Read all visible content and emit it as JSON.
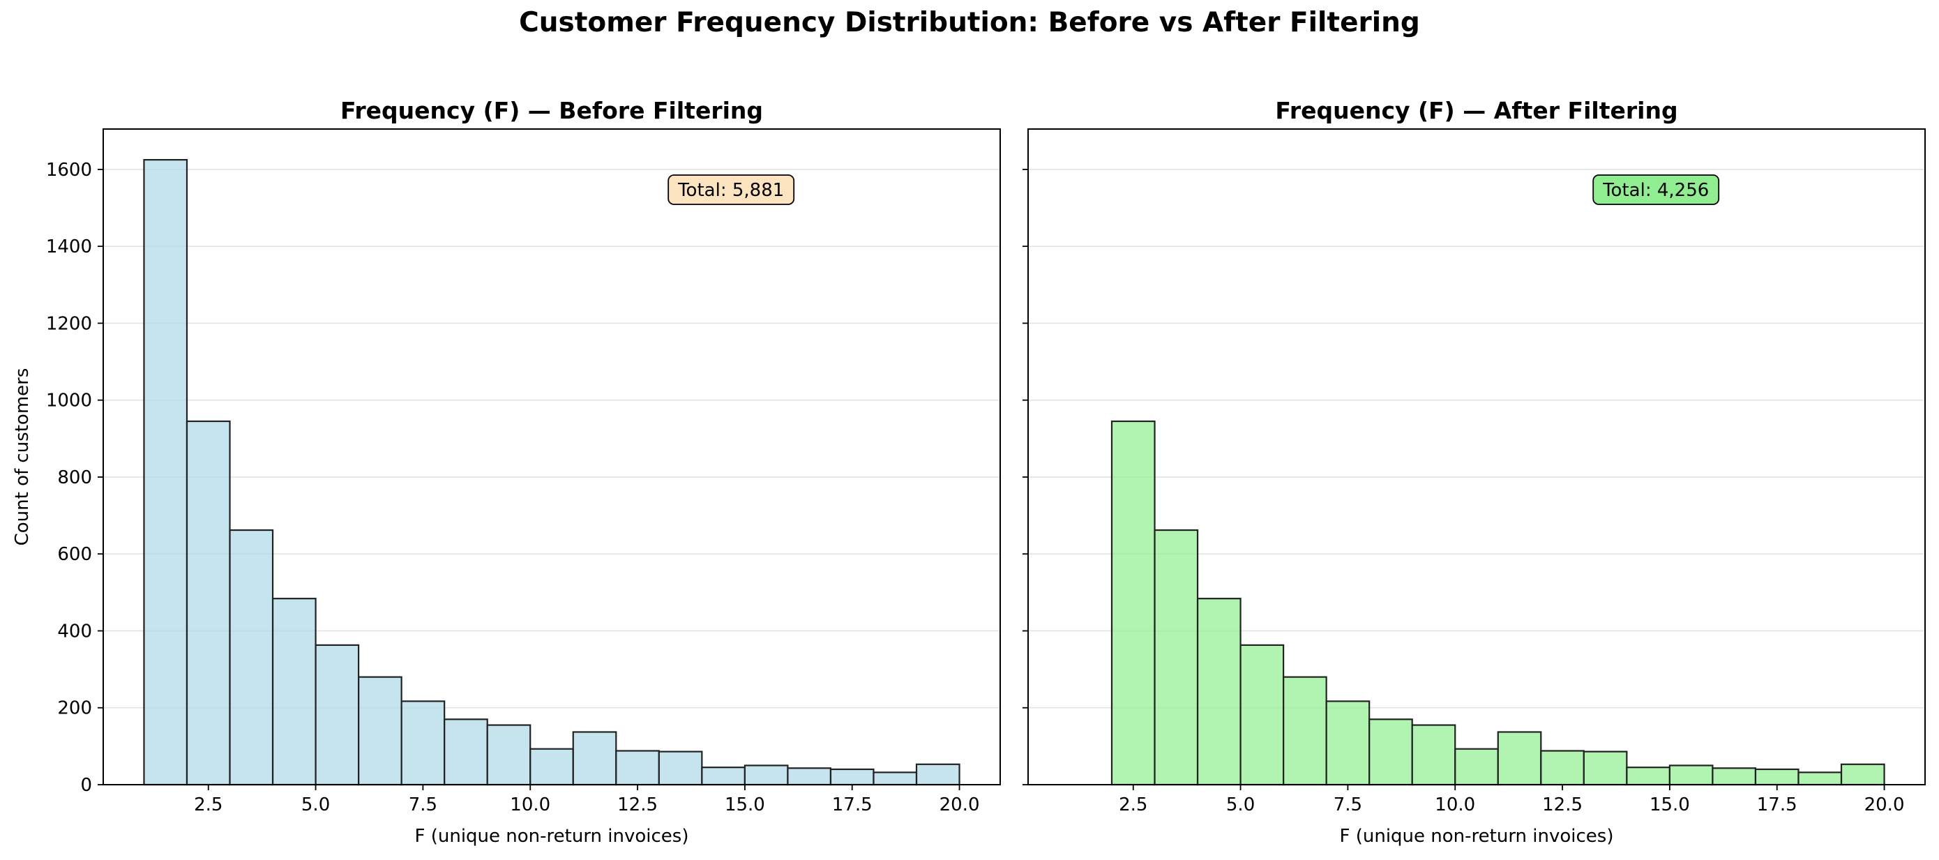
{
  "suptitle": "Customer Frequency Distribution: Before vs After Filtering",
  "chart_data": [
    {
      "type": "bar",
      "title": "Frequency (F) — Before Filtering",
      "xlabel": "F (unique non-return invoices)",
      "ylabel": "Count of customers",
      "xlim": [
        0.05,
        20.95
      ],
      "ylim": [
        0,
        1705
      ],
      "xticks": [
        2.5,
        5.0,
        7.5,
        10.0,
        12.5,
        15.0,
        17.5,
        20.0
      ],
      "xtick_labels": [
        "2.5",
        "5.0",
        "7.5",
        "10.0",
        "12.5",
        "15.0",
        "17.5",
        "20.0"
      ],
      "yticks": [
        0,
        200,
        400,
        600,
        800,
        1000,
        1200,
        1400,
        1600
      ],
      "ytick_labels": [
        "0",
        "200",
        "400",
        "600",
        "800",
        "1000",
        "1200",
        "1400",
        "1600"
      ],
      "bin_edges": [
        1,
        2,
        3,
        4,
        5,
        6,
        7,
        8,
        9,
        10,
        11,
        12,
        13,
        14,
        15,
        16,
        17,
        18,
        19,
        20
      ],
      "values": [
        1625,
        945,
        662,
        484,
        363,
        280,
        217,
        170,
        155,
        93,
        137,
        88,
        86,
        45,
        50,
        43,
        40,
        32,
        53
      ],
      "bar_color": "#add8e6",
      "grid": "y",
      "annotation": {
        "text": "Total: 5,881",
        "color": "#fde4c0",
        "placement": "top-right"
      }
    },
    {
      "type": "bar",
      "title": "Frequency (F) — After Filtering",
      "xlabel": "F (unique non-return invoices)",
      "ylabel": "",
      "xlim": [
        0.05,
        20.95
      ],
      "ylim": [
        0,
        1705
      ],
      "xticks": [
        2.5,
        5.0,
        7.5,
        10.0,
        12.5,
        15.0,
        17.5,
        20.0
      ],
      "xtick_labels": [
        "2.5",
        "5.0",
        "7.5",
        "10.0",
        "12.5",
        "15.0",
        "17.5",
        "20.0"
      ],
      "yticks": [
        0,
        200,
        400,
        600,
        800,
        1000,
        1200,
        1400,
        1600
      ],
      "ytick_labels": [],
      "bin_edges": [
        2,
        3,
        4,
        5,
        6,
        7,
        8,
        9,
        10,
        11,
        12,
        13,
        14,
        15,
        16,
        17,
        18,
        19,
        20
      ],
      "values": [
        945,
        662,
        484,
        363,
        280,
        217,
        170,
        155,
        93,
        137,
        88,
        86,
        45,
        50,
        43,
        40,
        32,
        53
      ],
      "bar_color": "#90ee90",
      "grid": "y",
      "annotation": {
        "text": "Total: 4,256",
        "color": "#90ee90",
        "placement": "top-right"
      }
    }
  ]
}
